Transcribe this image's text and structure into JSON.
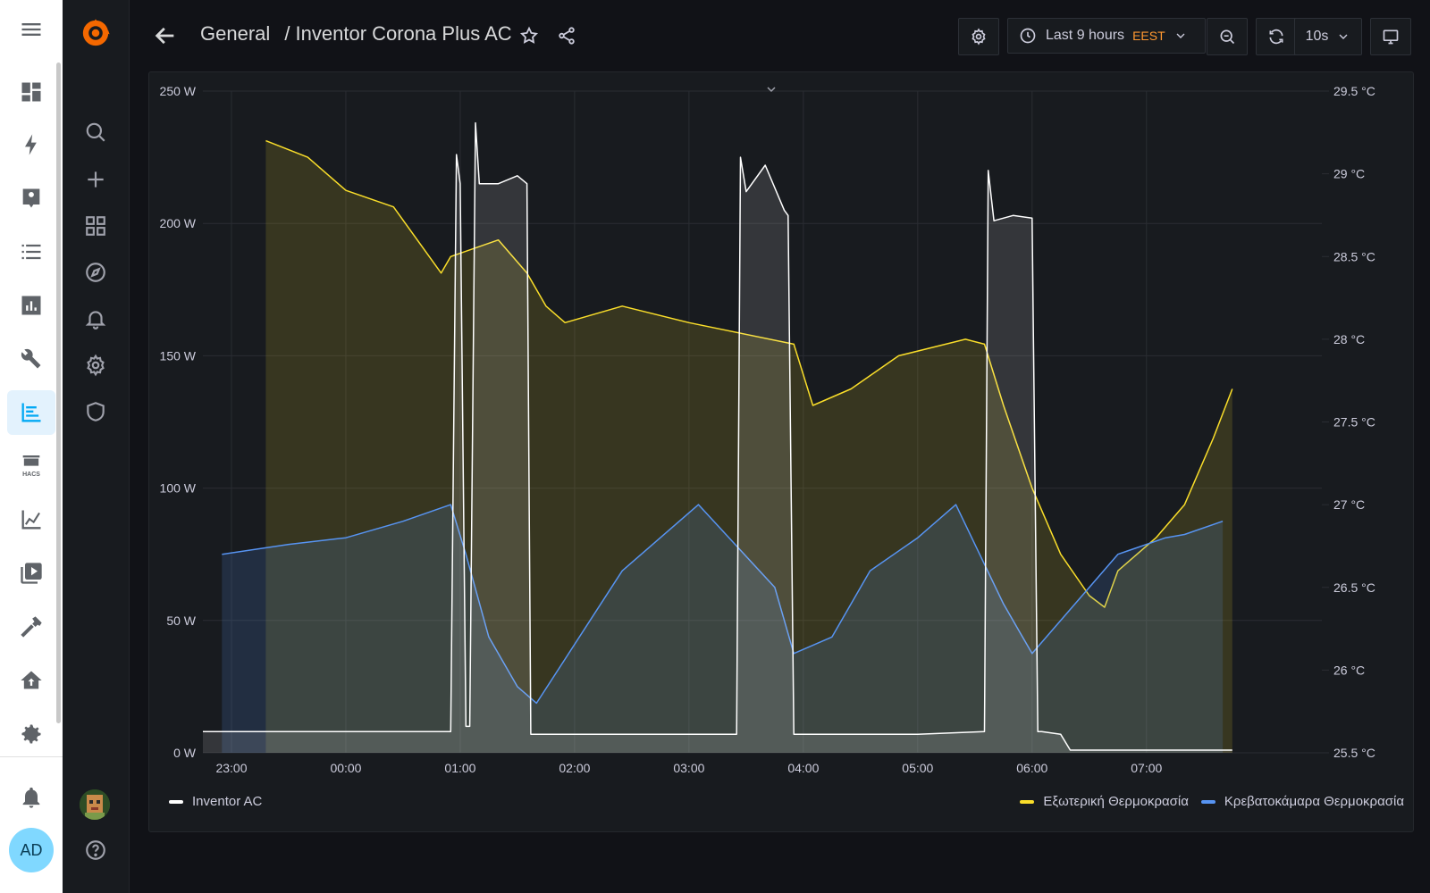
{
  "ha_sidebar": {
    "avatar_initials": "AD",
    "hacs_label": "HACS",
    "items": [
      {
        "icon": "menu-icon",
        "name": "menu"
      },
      {
        "icon": "dashboard-icon",
        "name": "overview"
      },
      {
        "icon": "energy-icon",
        "name": "energy"
      },
      {
        "icon": "person-badge-icon",
        "name": "map"
      },
      {
        "icon": "list-icon",
        "name": "logbook"
      },
      {
        "icon": "chart-bar-icon",
        "name": "history"
      },
      {
        "icon": "wrench-icon",
        "name": "tools"
      },
      {
        "icon": "grafana-chart-icon",
        "name": "grafana",
        "active": true
      },
      {
        "icon": "hacs-icon",
        "name": "hacs"
      },
      {
        "icon": "line-chart-icon",
        "name": "charts"
      },
      {
        "icon": "media-icon",
        "name": "media"
      },
      {
        "icon": "hammer-icon",
        "name": "developer-tools"
      },
      {
        "icon": "home-share-icon",
        "name": "home-share"
      },
      {
        "icon": "gear-icon",
        "name": "settings"
      },
      {
        "icon": "bell-icon",
        "name": "notifications"
      }
    ]
  },
  "grafana_menu": {
    "items": [
      "grafana-logo-icon",
      "search-icon",
      "plus-icon",
      "dashboards-icon",
      "compass-icon",
      "bell-icon",
      "gear-icon",
      "shield-icon",
      "user-avatar",
      "help-icon"
    ]
  },
  "topnav": {
    "folder": "General",
    "separator": "/",
    "dashboard_title": "Inventor Corona Plus AC",
    "time_range": "Last 9 hours",
    "timezone": "EEST",
    "refresh_interval": "10s"
  },
  "colors": {
    "power": "#ffffff",
    "outdoor": "#fade2a",
    "bedroom": "#5794f2",
    "background": "#111217",
    "panel": "#181b1f"
  },
  "chart_data": {
    "type": "line",
    "x_tick_labels": [
      "23:00",
      "00:00",
      "01:00",
      "02:00",
      "03:00",
      "04:00",
      "05:00",
      "06:00",
      "07:00"
    ],
    "left_axis": {
      "unit": "W",
      "ticks": [
        "0 W",
        "50 W",
        "100 W",
        "150 W",
        "200 W",
        "250 W"
      ],
      "ylim": [
        0,
        250
      ]
    },
    "right_axis": {
      "unit": "°C",
      "ticks": [
        "25.5 °C",
        "26 °C",
        "26.5 °C",
        "27 °C",
        "27.5 °C",
        "28 °C",
        "28.5 °C",
        "29 °C",
        "29.5 °C"
      ],
      "ylim": [
        25.5,
        29.5
      ]
    },
    "legend_left": [
      "Inventor AC"
    ],
    "legend_right": [
      "Εξωτερική Θερμοκρασία",
      "Κρεβατοκάμαρα Θερμοκρασία"
    ],
    "series": [
      {
        "name": "Inventor AC",
        "axis": "left",
        "color": "#ffffff",
        "x": [
          "22:45",
          "23:00",
          "00:00",
          "00:55",
          "00:58",
          "01:00",
          "01:03",
          "01:05",
          "01:08",
          "01:10",
          "01:20",
          "01:30",
          "01:35",
          "01:37",
          "02:00",
          "03:00",
          "03:25",
          "03:27",
          "03:30",
          "03:40",
          "03:50",
          "03:52",
          "03:55",
          "04:00",
          "05:00",
          "05:35",
          "05:37",
          "05:40",
          "05:50",
          "06:00",
          "06:03",
          "06:05",
          "06:15",
          "06:20",
          "06:25",
          "07:00",
          "07:45"
        ],
        "y": [
          8,
          8,
          8,
          8,
          226,
          215,
          10,
          10,
          238,
          215,
          215,
          218,
          215,
          7,
          7,
          7,
          7,
          225,
          212,
          222,
          205,
          203,
          7,
          7,
          7,
          8,
          220,
          201,
          203,
          202,
          8,
          8,
          7,
          1,
          1,
          1,
          1
        ]
      },
      {
        "name": "Εξωτερική Θερμοκρασία",
        "axis": "right",
        "color": "#fade2a",
        "x": [
          "23:18",
          "23:40",
          "00:00",
          "00:25",
          "00:50",
          "00:55",
          "01:20",
          "01:35",
          "01:45",
          "01:55",
          "02:25",
          "03:00",
          "03:55",
          "04:05",
          "04:25",
          "04:50",
          "05:25",
          "05:35",
          "05:45",
          "06:00",
          "06:15",
          "06:30",
          "06:38",
          "06:45",
          "07:05",
          "07:20",
          "07:35",
          "07:45"
        ],
        "y": [
          29.2,
          29.1,
          28.9,
          28.8,
          28.4,
          28.5,
          28.6,
          28.4,
          28.2,
          28.1,
          28.2,
          28.1,
          27.97,
          27.6,
          27.7,
          27.9,
          28.0,
          27.97,
          27.6,
          27.1,
          26.7,
          26.45,
          26.38,
          26.6,
          26.8,
          27.0,
          27.4,
          27.7
        ]
      },
      {
        "name": "Κρεβατοκάμαρα Θερμοκρασία",
        "axis": "right",
        "color": "#5794f2",
        "x": [
          "22:55",
          "23:30",
          "00:00",
          "00:30",
          "00:55",
          "01:03",
          "01:15",
          "01:30",
          "01:40",
          "02:25",
          "03:05",
          "03:45",
          "03:55",
          "04:15",
          "04:35",
          "05:00",
          "05:20",
          "05:45",
          "06:00",
          "06:30",
          "06:45",
          "06:50",
          "07:10",
          "07:20",
          "07:40"
        ],
        "y": [
          26.7,
          26.76,
          26.8,
          26.9,
          27.0,
          26.7,
          26.2,
          25.9,
          25.8,
          26.6,
          27.0,
          26.5,
          26.1,
          26.2,
          26.6,
          26.8,
          27.0,
          26.4,
          26.1,
          26.5,
          26.7,
          26.72,
          26.8,
          26.82,
          26.9
        ]
      }
    ],
    "grid": true,
    "legend_placement": "bottom"
  }
}
